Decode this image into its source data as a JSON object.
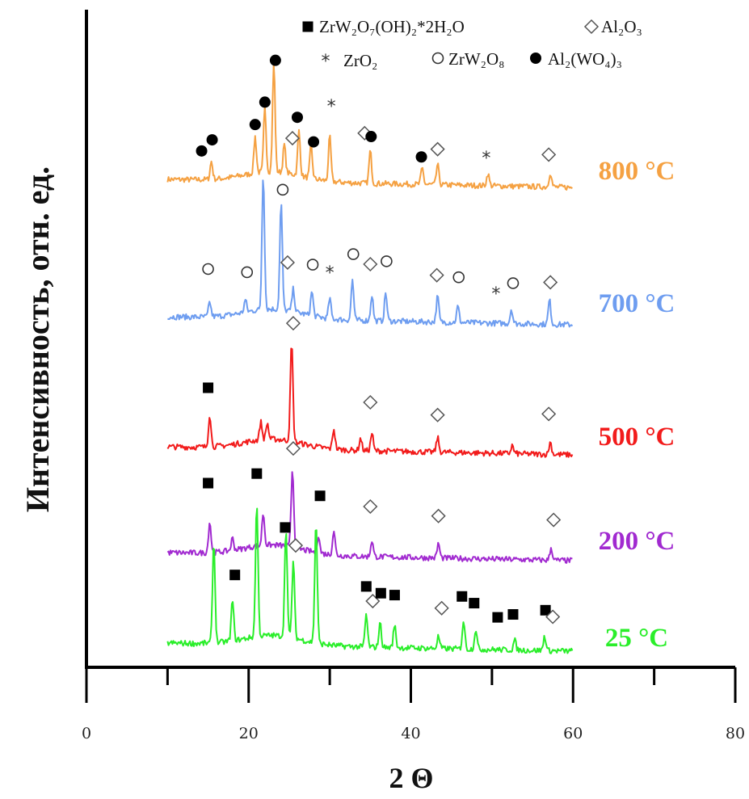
{
  "chart_data": {
    "type": "line",
    "xlabel": "2 Θ",
    "ylabel": "Интенсивность, отн. ед.",
    "xlim": [
      0,
      80
    ],
    "x_ticks": [
      "0",
      "20",
      "40",
      "60",
      "80"
    ],
    "legend": [
      {
        "symbol": "filled-square",
        "text": "ZrW₂O₇(OH)₂*2H₂O"
      },
      {
        "symbol": "open-diamond",
        "text": "Al₂O₃"
      },
      {
        "symbol": "asterisk",
        "text": "ZrO₂"
      },
      {
        "symbol": "open-circle",
        "text": "ZrW₂O₈"
      },
      {
        "symbol": "filled-circle",
        "text": "Al₂(WO₄)₃"
      }
    ],
    "series": [
      {
        "name": "800 °C",
        "color": "#f5a142",
        "offset": 232,
        "peaks": [
          {
            "x": 15.4,
            "h": 22
          },
          {
            "x": 20.8,
            "h": 45
          },
          {
            "x": 22.0,
            "h": 80
          },
          {
            "x": 23.1,
            "h": 135
          },
          {
            "x": 24.4,
            "h": 35
          },
          {
            "x": 26.2,
            "h": 55
          },
          {
            "x": 27.7,
            "h": 40
          },
          {
            "x": 30.0,
            "h": 55
          },
          {
            "x": 35.0,
            "h": 40
          },
          {
            "x": 41.4,
            "h": 20
          },
          {
            "x": 43.3,
            "h": 25
          },
          {
            "x": 49.5,
            "h": 15
          },
          {
            "x": 57.2,
            "h": 18
          }
        ],
        "markers": [
          {
            "type": "filled-circle",
            "x": 14.2,
            "h": 24
          },
          {
            "type": "filled-circle",
            "x": 15.5,
            "h": 38
          },
          {
            "type": "filled-circle",
            "x": 20.8,
            "h": 58
          },
          {
            "type": "filled-circle",
            "x": 22.0,
            "h": 86
          },
          {
            "type": "filled-circle",
            "x": 23.3,
            "h": 138
          },
          {
            "type": "filled-circle",
            "x": 26.0,
            "h": 68
          },
          {
            "type": "filled-circle",
            "x": 28.0,
            "h": 38
          },
          {
            "type": "open-diamond",
            "x": 25.4,
            "h": 42
          },
          {
            "type": "asterisk",
            "x": 30.2,
            "h": 82
          },
          {
            "type": "open-diamond",
            "x": 34.3,
            "h": 50
          },
          {
            "type": "filled-circle",
            "x": 35.1,
            "h": 46
          },
          {
            "type": "filled-circle",
            "x": 41.3,
            "h": 22
          },
          {
            "type": "open-diamond",
            "x": 43.3,
            "h": 32
          },
          {
            "type": "asterisk",
            "x": 49.3,
            "h": 22
          },
          {
            "type": "open-diamond",
            "x": 57.0,
            "h": 28
          }
        ]
      },
      {
        "name": "700 °C",
        "color": "#6e9df0",
        "offset": 402,
        "peaks": [
          {
            "x": 15.2,
            "h": 18
          },
          {
            "x": 19.6,
            "h": 15
          },
          {
            "x": 21.8,
            "h": 168
          },
          {
            "x": 24.0,
            "h": 132
          },
          {
            "x": 25.5,
            "h": 28
          },
          {
            "x": 27.8,
            "h": 30
          },
          {
            "x": 30.0,
            "h": 25
          },
          {
            "x": 32.8,
            "h": 50
          },
          {
            "x": 35.2,
            "h": 32
          },
          {
            "x": 36.9,
            "h": 35
          },
          {
            "x": 43.3,
            "h": 32
          },
          {
            "x": 45.8,
            "h": 20
          },
          {
            "x": 52.4,
            "h": 18
          },
          {
            "x": 57.1,
            "h": 30
          }
        ],
        "markers": [
          {
            "type": "open-circle",
            "x": 15.0,
            "h": 48
          },
          {
            "type": "open-circle",
            "x": 19.8,
            "h": 45
          },
          {
            "type": "open-circle",
            "x": 24.2,
            "h": 148
          },
          {
            "type": "open-diamond",
            "x": 24.8,
            "h": 58
          },
          {
            "type": "open-circle",
            "x": 27.9,
            "h": 56
          },
          {
            "type": "asterisk",
            "x": 30.0,
            "h": 46
          },
          {
            "type": "open-circle",
            "x": 32.9,
            "h": 70
          },
          {
            "type": "open-diamond",
            "x": 35.0,
            "h": 58
          },
          {
            "type": "open-circle",
            "x": 37.0,
            "h": 62
          },
          {
            "type": "open-diamond",
            "x": 43.2,
            "h": 46
          },
          {
            "type": "open-circle",
            "x": 45.9,
            "h": 44
          },
          {
            "type": "asterisk",
            "x": 50.5,
            "h": 24
          },
          {
            "type": "open-circle",
            "x": 52.6,
            "h": 38
          },
          {
            "type": "open-diamond",
            "x": 57.2,
            "h": 40
          }
        ]
      },
      {
        "name": "500 °C",
        "color": "#f21b1b",
        "offset": 563,
        "peaks": [
          {
            "x": 15.2,
            "h": 40
          },
          {
            "x": 21.5,
            "h": 22
          },
          {
            "x": 22.3,
            "h": 20
          },
          {
            "x": 25.3,
            "h": 122
          },
          {
            "x": 30.5,
            "h": 25
          },
          {
            "x": 33.8,
            "h": 15
          },
          {
            "x": 35.2,
            "h": 22
          },
          {
            "x": 43.3,
            "h": 18
          },
          {
            "x": 52.5,
            "h": 10
          },
          {
            "x": 57.2,
            "h": 15
          }
        ],
        "markers": [
          {
            "type": "filled-square",
            "x": 15.0,
            "h": 62
          },
          {
            "type": "open-diamond",
            "x": 25.5,
            "h": 144
          },
          {
            "type": "open-diamond",
            "x": 35.0,
            "h": 48
          },
          {
            "type": "open-diamond",
            "x": 43.3,
            "h": 34
          },
          {
            "type": "open-diamond",
            "x": 57.0,
            "h": 38
          }
        ]
      },
      {
        "name": "200 °C",
        "color": "#a12ad0",
        "offset": 694,
        "peaks": [
          {
            "x": 15.2,
            "h": 38
          },
          {
            "x": 18.0,
            "h": 15
          },
          {
            "x": 21.8,
            "h": 40
          },
          {
            "x": 25.4,
            "h": 97
          },
          {
            "x": 28.6,
            "h": 22
          },
          {
            "x": 30.5,
            "h": 30
          },
          {
            "x": 35.2,
            "h": 20
          },
          {
            "x": 43.4,
            "h": 18
          },
          {
            "x": 57.3,
            "h": 15
          }
        ],
        "markers": [
          {
            "type": "filled-square",
            "x": 15.0,
            "h": 75
          },
          {
            "type": "filled-square",
            "x": 21.0,
            "h": 88
          },
          {
            "type": "open-diamond",
            "x": 25.5,
            "h": 120
          },
          {
            "type": "filled-square",
            "x": 28.8,
            "h": 62
          },
          {
            "type": "open-diamond",
            "x": 35.0,
            "h": 50
          },
          {
            "type": "open-diamond",
            "x": 43.4,
            "h": 40
          },
          {
            "type": "open-diamond",
            "x": 57.6,
            "h": 38
          }
        ]
      },
      {
        "name": "25 °C",
        "color": "#2aee2a",
        "offset": 806,
        "peaks": [
          {
            "x": 15.7,
            "h": 125
          },
          {
            "x": 18.0,
            "h": 50
          },
          {
            "x": 21.0,
            "h": 165
          },
          {
            "x": 24.6,
            "h": 135
          },
          {
            "x": 25.5,
            "h": 95
          },
          {
            "x": 28.3,
            "h": 150
          },
          {
            "x": 34.5,
            "h": 40
          },
          {
            "x": 36.2,
            "h": 30
          },
          {
            "x": 38.0,
            "h": 28
          },
          {
            "x": 43.4,
            "h": 15
          },
          {
            "x": 46.5,
            "h": 35
          },
          {
            "x": 48.0,
            "h": 25
          },
          {
            "x": 52.8,
            "h": 12
          },
          {
            "x": 56.5,
            "h": 18
          }
        ],
        "markers": [
          {
            "type": "filled-square",
            "x": 18.3,
            "h": 74
          },
          {
            "type": "filled-square",
            "x": 24.5,
            "h": 134
          },
          {
            "type": "open-diamond",
            "x": 25.8,
            "h": 112
          },
          {
            "type": "filled-square",
            "x": 34.5,
            "h": 63
          },
          {
            "type": "open-diamond",
            "x": 35.3,
            "h": 45
          },
          {
            "type": "filled-square",
            "x": 36.3,
            "h": 55
          },
          {
            "type": "filled-square",
            "x": 38.0,
            "h": 53
          },
          {
            "type": "open-diamond",
            "x": 43.8,
            "h": 38
          },
          {
            "type": "filled-square",
            "x": 46.3,
            "h": 53
          },
          {
            "type": "filled-square",
            "x": 47.8,
            "h": 45
          },
          {
            "type": "filled-square",
            "x": 50.7,
            "h": 28
          },
          {
            "type": "filled-square",
            "x": 52.6,
            "h": 32
          },
          {
            "type": "filled-square",
            "x": 56.6,
            "h": 38
          },
          {
            "type": "open-diamond",
            "x": 57.5,
            "h": 30
          }
        ]
      }
    ]
  }
}
